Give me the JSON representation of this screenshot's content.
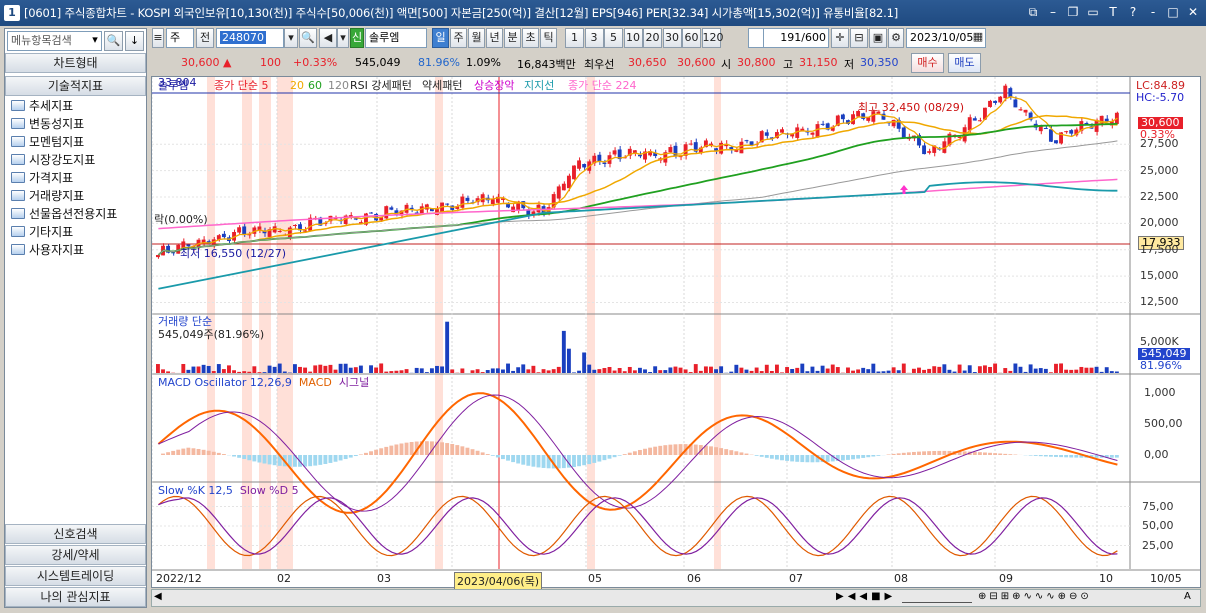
{
  "window": {
    "number": "1",
    "title": "[0601] 주식종합차트 - KOSPI 외국인보유[10,130(천)] 주식수[50,006(천)] 액면[500] 자본금[250(억)] 결산[12월] EPS[946] PER[32.34] 시가총액[15,302(억)] 유통비율[82.1]"
  },
  "sidebar": {
    "search_placeholder": "메뉴항목검색",
    "top_header": "차트형태",
    "section_header": "기술적지표",
    "items": [
      "추세지표",
      "변동성지표",
      "모멘텀지표",
      "시장강도지표",
      "가격지표",
      "거래량지표",
      "선물옵션전용지표",
      "기타지표",
      "사용자지표"
    ],
    "bottom": [
      "신호검색",
      "강세/약세",
      "시스템트레이딩",
      "나의 관심지표"
    ]
  },
  "toolbar": {
    "market": "주",
    "type": "전",
    "code": "248070",
    "badge": "신",
    "name": "솔루엠",
    "periods": [
      "일",
      "주",
      "월",
      "년",
      "분",
      "초",
      "틱"
    ],
    "intervals": [
      "1",
      "3",
      "5",
      "10",
      "20",
      "30",
      "60",
      "120"
    ],
    "page": "191",
    "page_total": "/600",
    "date": "2023/10/05"
  },
  "quote": {
    "price": "30,600",
    "change": "100",
    "change_pct": "+0.33%",
    "volume": "545,049",
    "vol_ratio": "81.96%",
    "turnover": "1.09%",
    "amount": "16,843백만",
    "best_label": "최우선",
    "ask": "30,650",
    "bid": "30,600",
    "open_label": "시",
    "open": "30,800",
    "high_label": "고",
    "high": "31,150",
    "low_label": "저",
    "low": "30,350",
    "buy": "매수",
    "sell": "매도"
  },
  "price_panel": {
    "legend": [
      "솔루엠",
      "종가 단순 5",
      "20",
      "60",
      "120",
      "RSI 강세패턴",
      "약세패턴",
      "상승장악",
      "지지선",
      "종가 단순 224"
    ],
    "left_value": "33,804",
    "left_pct": "락(0.00%)",
    "high_note": "최고 32,450 (08/29)",
    "low_note": "최저 16,550 (12/27)",
    "lc": "LC:84.89",
    "hc": "HC:-5.70",
    "cur_price": "30,600",
    "cur_pct": "0.33%",
    "support": "17,933",
    "yticks": [
      "27,500",
      "25,000",
      "22,500",
      "20,000",
      "17,500",
      "15,000",
      "12,500"
    ]
  },
  "volume_panel": {
    "title": "거래량 단순",
    "value": "545,049주(81.96%)",
    "ytick": "5,000K",
    "cur": "545,049",
    "cur_pct": "81.96%"
  },
  "macd_panel": {
    "title": "MACD Oscillator 12,26,9",
    "t2": "MACD",
    "t3": "시그널",
    "yticks": [
      "1,000",
      "500,00",
      "0,00"
    ]
  },
  "stoch_panel": {
    "title": "Slow %K 12,5",
    "t2": "Slow %D 5",
    "yticks": [
      "75,00",
      "50,00",
      "25,00"
    ]
  },
  "xaxis": {
    "labels": [
      "2022/12",
      "02",
      "03",
      "2023/04/06(목)",
      "05",
      "06",
      "07",
      "08",
      "09",
      "10",
      "10/05"
    ]
  },
  "colors": {
    "up": "#e8202a",
    "down": "#1a3fbf",
    "ma5": "#f0a800",
    "ma20": "#ff6600",
    "ma60": "#20a020",
    "ma120": "#999999",
    "ma224": "#ff66cc"
  }
}
